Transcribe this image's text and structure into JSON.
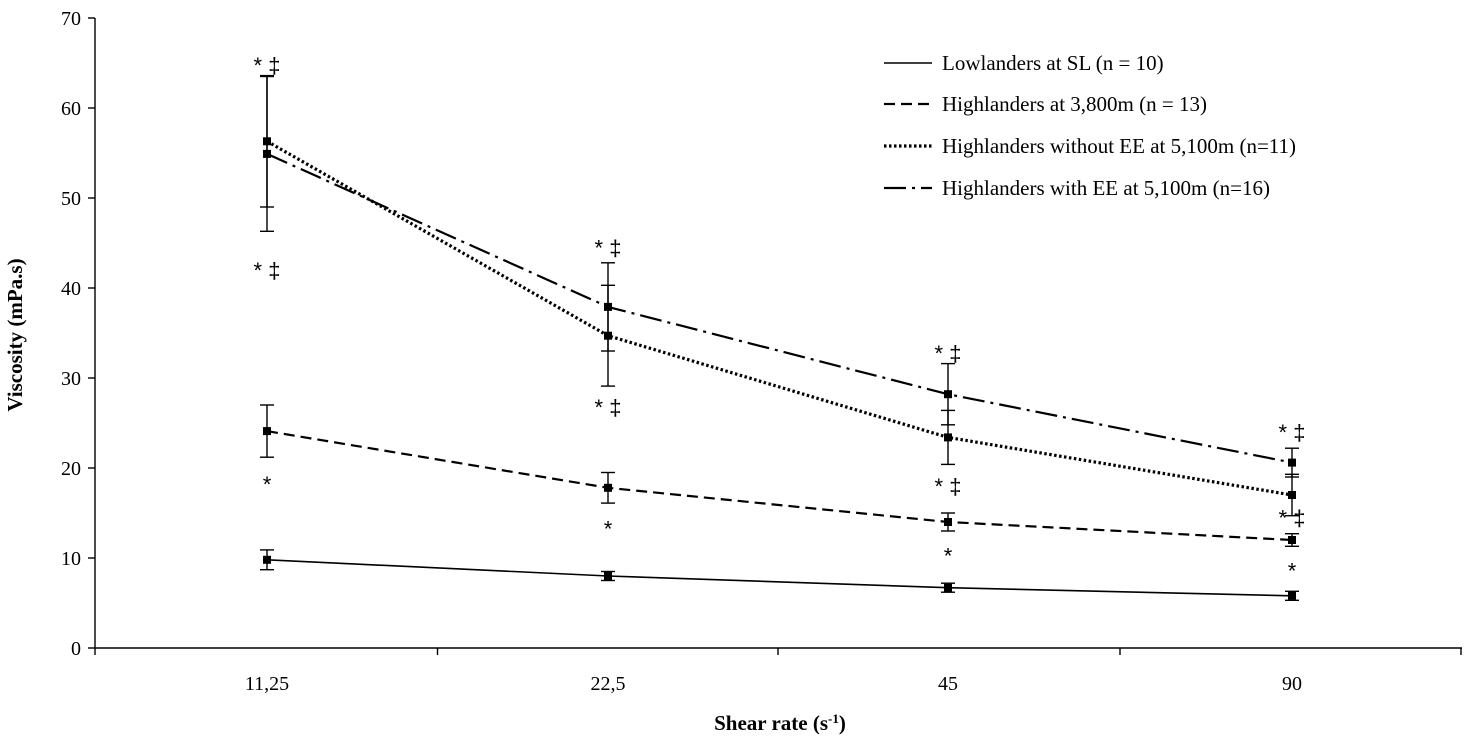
{
  "chart_data": {
    "type": "line",
    "xlabel": "Shear rate (s",
    "xlabel_sup": "-1",
    "xlabel_suffix": ")",
    "ylabel": "Viscosity (mPa.s)",
    "ylim": [
      0,
      70
    ],
    "yticks": [
      "0",
      "10",
      "20",
      "30",
      "40",
      "50",
      "60",
      "70"
    ],
    "categories": [
      "11,25",
      "22,5",
      "45",
      "90"
    ],
    "grid": false,
    "legend_position": "top-right",
    "series": [
      {
        "name": "Lowlanders at SL (n = 10)",
        "style": "solid",
        "values": [
          9.8,
          8.0,
          6.7,
          5.8
        ],
        "errors": [
          1.1,
          0.5,
          0.5,
          0.5
        ]
      },
      {
        "name": "Highlanders at 3,800m (n = 13)",
        "style": "dashed",
        "values": [
          24.1,
          17.8,
          14.0,
          12.0
        ],
        "errors": [
          2.9,
          1.7,
          1.0,
          0.7
        ]
      },
      {
        "name": "Highlanders without EE at 5,100m (n=11)",
        "style": "dotted",
        "values": [
          56.3,
          34.7,
          23.4,
          17.0
        ],
        "errors": [
          7.3,
          5.6,
          3.0,
          2.3
        ]
      },
      {
        "name": "Highlanders with EE at 5,100m (n=16)",
        "style": "dashdot",
        "values": [
          54.9,
          37.9,
          28.2,
          20.6
        ],
        "errors": [
          8.6,
          4.9,
          3.4,
          1.6
        ]
      }
    ],
    "annotations": [
      {
        "text": "* ‡",
        "category": "11,25",
        "y": 64.8
      },
      {
        "text": "* ‡",
        "category": "11,25",
        "y": 42.0
      },
      {
        "text": "*",
        "category": "11,25",
        "y": 18.2
      },
      {
        "text": "* ‡",
        "category": "22,5",
        "y": 44.5
      },
      {
        "text": "* ‡",
        "category": "22,5",
        "y": 26.8
      },
      {
        "text": "*",
        "category": "22,5",
        "y": 13.3
      },
      {
        "text": "* ‡",
        "category": "45",
        "y": 32.8
      },
      {
        "text": "* ‡",
        "category": "45",
        "y": 18.0
      },
      {
        "text": "*",
        "category": "45",
        "y": 10.3
      },
      {
        "text": "* ‡",
        "category": "90",
        "y": 24.0
      },
      {
        "text": "* ‡",
        "category": "90",
        "y": 14.5
      },
      {
        "text": "*",
        "category": "90",
        "y": 8.6
      }
    ]
  }
}
